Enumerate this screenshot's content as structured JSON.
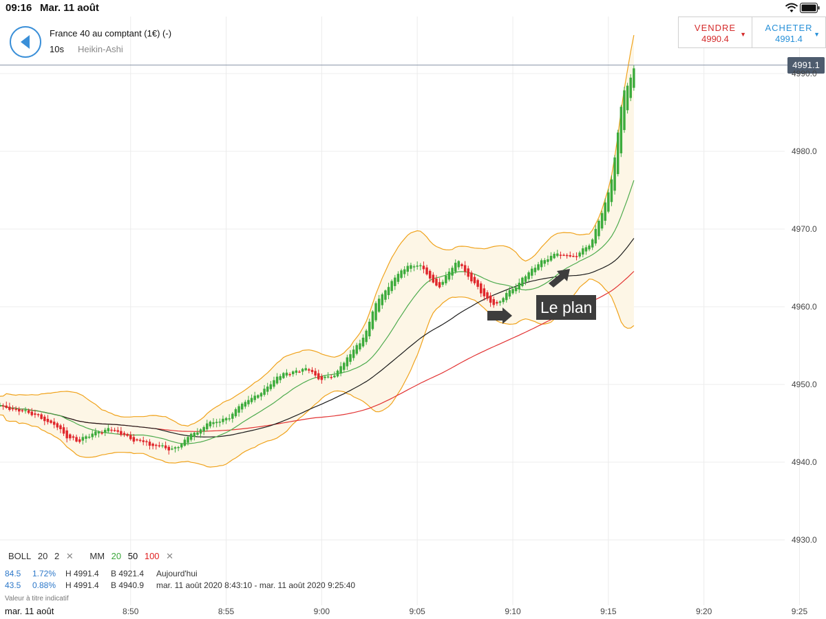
{
  "status": {
    "time": "09:16",
    "date": "Mar. 11 août"
  },
  "header": {
    "instrument": "France 40 au comptant (1€) (-)",
    "interval": "10s",
    "chart_type": "Heikin-Ashi"
  },
  "trade": {
    "sell_label": "VENDRE",
    "sell_price": "4990.4",
    "buy_label": "ACHETER",
    "buy_price": "4991.4"
  },
  "current_price": "4991.1",
  "annotation": "Le plan",
  "legend": {
    "boll_label": "BOLL",
    "boll_period": "20",
    "boll_dev": "2",
    "ma_label": "MM",
    "ma_1": "20",
    "ma_2": "50",
    "ma_3": "100",
    "remove": "✕"
  },
  "stats": [
    {
      "points": "84.5",
      "pct": "1.72%",
      "high": "H 4991.4",
      "low": "B 4921.4",
      "period": "Aujourd'hui"
    },
    {
      "points": "43.5",
      "pct": "0.88%",
      "high": "H 4991.4",
      "low": "B 4940.9",
      "period": "mar. 11 août 2020 8:43:10 - mar. 11 août 2020 9:25:40"
    }
  ],
  "disclaimer": "Valeur à titre indicatif",
  "axis": {
    "date": "mar. 11 août",
    "x_ticks": [
      "8:50",
      "8:55",
      "9:00",
      "9:05",
      "9:10",
      "9:15",
      "9:20",
      "9:25"
    ],
    "y_ticks": [
      "4930.0",
      "4940.0",
      "4950.0",
      "4960.0",
      "4970.0",
      "4980.0",
      "4990.0"
    ]
  },
  "colors": {
    "up": "#3cab3c",
    "down": "#e0262b",
    "boll": "#f0a21a",
    "ma20": "#4caa4c",
    "ma50": "#1a1a1a",
    "ma100": "#e23232",
    "accent": "#3a8fd8"
  },
  "chart_data": {
    "type": "candlestick",
    "y_range": [
      4925,
      4995
    ],
    "x_range": [
      "8:43:10",
      "9:25:40"
    ],
    "close_keypoints": [
      [
        "8:43:10",
        4947.3
      ],
      [
        "8:44:00",
        4946.8
      ],
      [
        "8:45:00",
        4946.0
      ],
      [
        "8:46:00",
        4944.8
      ],
      [
        "8:47:00",
        4942.5
      ],
      [
        "8:48:00",
        4943.8
      ],
      [
        "8:49:00",
        4944.3
      ],
      [
        "8:50:00",
        4943.0
      ],
      [
        "8:51:00",
        4942.2
      ],
      [
        "8:52:00",
        4941.8
      ],
      [
        "8:53:00",
        4943.2
      ],
      [
        "8:54:00",
        4945.0
      ],
      [
        "8:55:00",
        4945.8
      ],
      [
        "8:56:00",
        4947.5
      ],
      [
        "8:57:00",
        4949.8
      ],
      [
        "8:58:00",
        4951.5
      ],
      [
        "8:59:00",
        4952.0
      ],
      [
        "9:00:00",
        4950.5
      ],
      [
        "9:01:00",
        4952.3
      ],
      [
        "9:02:00",
        4956.0
      ],
      [
        "9:03:00",
        4961.5
      ],
      [
        "9:04:00",
        4964.8
      ],
      [
        "9:05:00",
        4965.8
      ],
      [
        "9:06:00",
        4962.5
      ],
      [
        "9:07:00",
        4965.8
      ],
      [
        "9:08:00",
        4962.8
      ],
      [
        "9:09:00",
        4960.2
      ],
      [
        "9:10:00",
        4962.5
      ],
      [
        "9:11:00",
        4964.8
      ],
      [
        "9:12:00",
        4966.6
      ],
      [
        "9:13:00",
        4966.2
      ],
      [
        "9:14:00",
        4968.0
      ],
      [
        "9:15:00",
        4975.0
      ],
      [
        "9:15:40",
        4987.0
      ],
      [
        "9:16:20",
        4991.1
      ]
    ]
  }
}
